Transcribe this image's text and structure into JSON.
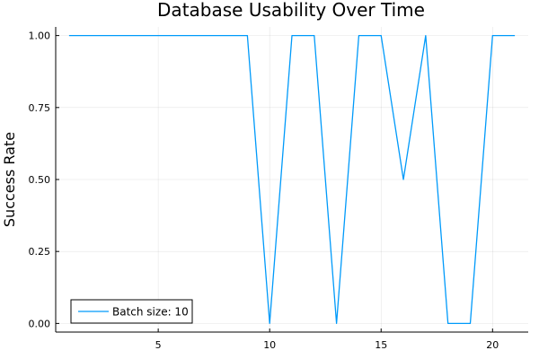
{
  "chart_data": {
    "type": "line",
    "title": "Database Usability Over Time",
    "xlabel": "",
    "ylabel": "Success Rate",
    "xlim": [
      0.4,
      21.6
    ],
    "ylim": [
      -0.03,
      1.03
    ],
    "xticks": [
      5,
      10,
      15,
      20
    ],
    "yticks": [
      0.0,
      0.25,
      0.5,
      0.75,
      1.0
    ],
    "xtick_labels": [
      "5",
      "10",
      "15",
      "20"
    ],
    "ytick_labels": [
      "0.00",
      "0.25",
      "0.50",
      "0.75",
      "1.00"
    ],
    "grid": true,
    "legend_position": "bottom-left",
    "series": [
      {
        "name": "Batch size: 10",
        "color": "#009AFA",
        "x": [
          1,
          2,
          3,
          4,
          5,
          6,
          7,
          8,
          9,
          10,
          11,
          12,
          13,
          14,
          15,
          16,
          17,
          18,
          19,
          20,
          21
        ],
        "y": [
          1.0,
          1.0,
          1.0,
          1.0,
          1.0,
          1.0,
          1.0,
          1.0,
          1.0,
          0.0,
          1.0,
          1.0,
          0.0,
          1.0,
          1.0,
          0.5,
          1.0,
          0.0,
          0.0,
          1.0,
          1.0
        ]
      }
    ]
  }
}
